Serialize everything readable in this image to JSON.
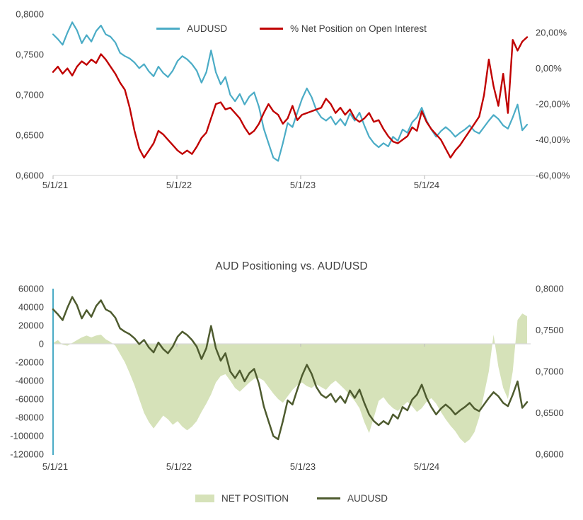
{
  "accent_colors": {
    "audusd_blue": "#4BACC6",
    "net_pct_red": "#C00000",
    "audusd_olive": "#4E5B2F",
    "net_position_green": "#D6E2B9",
    "axis_line_gray": "#D9D9D9",
    "tick_gray": "#BFBFBF",
    "label_gray": "#404040",
    "left_axis_line_teal": "#4BACC6"
  },
  "chart_data": [
    {
      "type": "line",
      "title": "",
      "legend_position": "top-center",
      "x_axis": {
        "labels": [
          "5/1/21",
          "5/1/22",
          "5/1/23",
          "5/1/24"
        ]
      },
      "left_axis": {
        "labels": [
          "0,8000",
          "0,7500",
          "0,7000",
          "0,6500",
          "0,6000"
        ],
        "values": [
          0.8,
          0.75,
          0.7,
          0.65,
          0.6
        ],
        "min": 0.6,
        "max": 0.8
      },
      "right_axis": {
        "labels": [
          "20,00%",
          "0,00%",
          "-20,00%",
          "-40,00%",
          "-60,00%"
        ],
        "values": [
          20,
          0,
          -20,
          -40,
          -60
        ],
        "min": -60,
        "max": 30.4
      },
      "grid": "off",
      "series": [
        {
          "name": "AUDUSD",
          "axis": "left",
          "color": "#4BACC6",
          "values": [
            0.775,
            0.769,
            0.762,
            0.777,
            0.79,
            0.78,
            0.764,
            0.774,
            0.766,
            0.779,
            0.786,
            0.775,
            0.772,
            0.765,
            0.752,
            0.748,
            0.745,
            0.74,
            0.733,
            0.738,
            0.729,
            0.723,
            0.735,
            0.727,
            0.722,
            0.73,
            0.742,
            0.748,
            0.744,
            0.738,
            0.73,
            0.715,
            0.728,
            0.755,
            0.728,
            0.713,
            0.722,
            0.7,
            0.692,
            0.701,
            0.688,
            0.698,
            0.703,
            0.685,
            0.658,
            0.64,
            0.622,
            0.618,
            0.64,
            0.665,
            0.66,
            0.678,
            0.695,
            0.708,
            0.697,
            0.681,
            0.672,
            0.668,
            0.673,
            0.663,
            0.67,
            0.662,
            0.677,
            0.668,
            0.678,
            0.662,
            0.648,
            0.64,
            0.635,
            0.64,
            0.636,
            0.648,
            0.643,
            0.657,
            0.653,
            0.666,
            0.672,
            0.684,
            0.668,
            0.657,
            0.648,
            0.655,
            0.66,
            0.655,
            0.648,
            0.653,
            0.657,
            0.662,
            0.655,
            0.652,
            0.66,
            0.668,
            0.675,
            0.67,
            0.662,
            0.658,
            0.672,
            0.688,
            0.656,
            0.663
          ]
        },
        {
          "name": "% Net Position on Open Interest",
          "axis": "right",
          "color": "#C00000",
          "values": [
            -2,
            1,
            -3,
            0,
            -4,
            1,
            4,
            2,
            5,
            3,
            8,
            5,
            1,
            -3,
            -8,
            -12,
            -22,
            -35,
            -45,
            -50,
            -46,
            -42,
            -35,
            -37,
            -40,
            -43,
            -46,
            -48,
            -46,
            -48,
            -44,
            -39,
            -36,
            -28,
            -20,
            -19,
            -23,
            -22,
            -25,
            -28,
            -33,
            -37,
            -35,
            -31,
            -25,
            -20,
            -24,
            -26,
            -31,
            -28,
            -21,
            -29,
            -26,
            -25,
            -24,
            -23,
            -22,
            -17,
            -20,
            -25,
            -22,
            -26,
            -23,
            -28,
            -30,
            -28,
            -25,
            -30,
            -29,
            -34,
            -38,
            -41,
            -42,
            -40,
            -38,
            -33,
            -35,
            -24,
            -30,
            -34,
            -37,
            -40,
            -45,
            -50,
            -46,
            -43,
            -39,
            -35,
            -31,
            -27,
            -15,
            5,
            -10,
            -21,
            -3,
            -25,
            16,
            10,
            15,
            17.5
          ]
        }
      ]
    },
    {
      "type": "area",
      "title": "AUD Positioning vs. AUD/USD",
      "legend_position": "bottom-center",
      "x_axis": {
        "labels": [
          "5/1/21",
          "5/1/22",
          "5/1/23",
          "5/1/24"
        ]
      },
      "left_axis": {
        "labels": [
          "60000",
          "40000",
          "20000",
          "0",
          "-20000",
          "-40000",
          "-60000",
          "-80000",
          "-100000",
          "-120000"
        ],
        "values": [
          60000,
          40000,
          20000,
          0,
          -20000,
          -40000,
          -60000,
          -80000,
          -100000,
          -120000
        ],
        "min": -120000,
        "max": 60000
      },
      "right_axis": {
        "labels": [
          "0,8000",
          "0,7500",
          "0,7000",
          "0,6500",
          "0,6000"
        ],
        "values": [
          0.8,
          0.75,
          0.7,
          0.65,
          0.6
        ],
        "min": 0.6,
        "max": 0.8
      },
      "grid": "off",
      "series": [
        {
          "name": "NET POSITION",
          "type": "area",
          "axis": "left",
          "color": "#D6E2B9",
          "values": [
            1000,
            4000,
            -1000,
            -2000,
            1000,
            4000,
            7000,
            9000,
            7000,
            9000,
            10000,
            5000,
            2000,
            -2000,
            -11000,
            -20000,
            -32000,
            -45000,
            -60000,
            -75000,
            -85000,
            -92000,
            -85000,
            -78000,
            -82000,
            -88000,
            -84000,
            -90000,
            -94000,
            -90000,
            -84000,
            -74000,
            -65000,
            -55000,
            -42000,
            -35000,
            -33000,
            -40000,
            -48000,
            -52000,
            -47000,
            -42000,
            -38000,
            -37000,
            -40000,
            -47000,
            -54000,
            -60000,
            -64000,
            -57000,
            -50000,
            -45000,
            -42000,
            -46000,
            -48000,
            -44000,
            -47000,
            -50000,
            -44000,
            -40000,
            -45000,
            -50000,
            -56000,
            -62000,
            -70000,
            -85000,
            -97000,
            -80000,
            -62000,
            -58000,
            -65000,
            -70000,
            -73000,
            -68000,
            -63000,
            -68000,
            -74000,
            -70000,
            -63000,
            -59000,
            -65000,
            -74000,
            -82000,
            -89000,
            -95000,
            -103000,
            -108000,
            -104000,
            -96000,
            -80000,
            -55000,
            -30000,
            10000,
            -25000,
            -48000,
            -60000,
            -30000,
            26000,
            33000,
            30000
          ]
        },
        {
          "name": "AUDUSD",
          "type": "line",
          "axis": "right",
          "color": "#4E5B2F",
          "values": [
            0.775,
            0.769,
            0.762,
            0.777,
            0.79,
            0.78,
            0.764,
            0.774,
            0.766,
            0.779,
            0.786,
            0.775,
            0.772,
            0.765,
            0.752,
            0.748,
            0.745,
            0.74,
            0.733,
            0.738,
            0.729,
            0.723,
            0.735,
            0.727,
            0.722,
            0.73,
            0.742,
            0.748,
            0.744,
            0.738,
            0.73,
            0.715,
            0.728,
            0.755,
            0.728,
            0.713,
            0.722,
            0.7,
            0.692,
            0.701,
            0.688,
            0.698,
            0.703,
            0.685,
            0.658,
            0.64,
            0.622,
            0.618,
            0.64,
            0.665,
            0.66,
            0.678,
            0.695,
            0.708,
            0.697,
            0.681,
            0.672,
            0.668,
            0.673,
            0.663,
            0.67,
            0.662,
            0.677,
            0.668,
            0.678,
            0.662,
            0.648,
            0.64,
            0.635,
            0.64,
            0.636,
            0.648,
            0.643,
            0.657,
            0.653,
            0.666,
            0.672,
            0.684,
            0.668,
            0.657,
            0.648,
            0.655,
            0.66,
            0.655,
            0.648,
            0.653,
            0.657,
            0.662,
            0.655,
            0.652,
            0.66,
            0.668,
            0.675,
            0.67,
            0.662,
            0.658,
            0.672,
            0.688,
            0.656,
            0.663
          ]
        }
      ]
    }
  ]
}
